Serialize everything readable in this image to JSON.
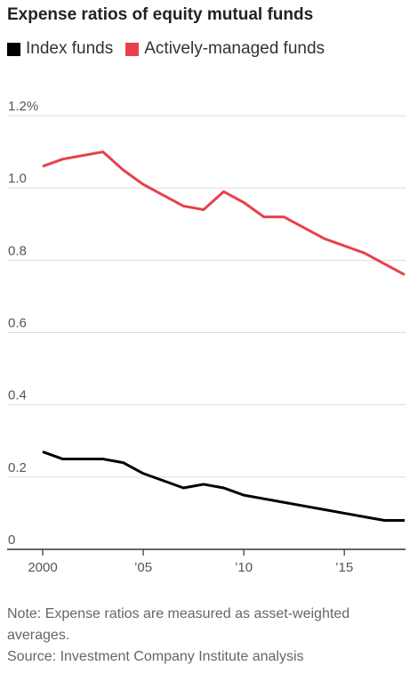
{
  "title": "Expense ratios of equity mutual funds",
  "colors": {
    "index": "#000000",
    "active": "#e8404b",
    "grid": "#dddddd",
    "axis": "#333333"
  },
  "chart_data": {
    "type": "line",
    "x": [
      2000,
      2001,
      2002,
      2003,
      2004,
      2005,
      2006,
      2007,
      2008,
      2009,
      2010,
      2011,
      2012,
      2013,
      2014,
      2015,
      2016,
      2017,
      2018
    ],
    "series": [
      {
        "name": "Index funds",
        "color": "#000000",
        "values": [
          0.27,
          0.25,
          0.25,
          0.25,
          0.24,
          0.21,
          0.19,
          0.17,
          0.18,
          0.17,
          0.15,
          0.14,
          0.13,
          0.12,
          0.11,
          0.1,
          0.09,
          0.08,
          0.08
        ]
      },
      {
        "name": "Actively-managed funds",
        "color": "#e8404b",
        "values": [
          1.06,
          1.08,
          1.09,
          1.1,
          1.05,
          1.01,
          0.98,
          0.95,
          0.94,
          0.99,
          0.96,
          0.92,
          0.92,
          0.89,
          0.86,
          0.84,
          0.82,
          0.79,
          0.76
        ]
      }
    ],
    "y_ticks": [
      {
        "value": 1.2,
        "label": "1.2%"
      },
      {
        "value": 1.0,
        "label": "1.0"
      },
      {
        "value": 0.8,
        "label": "0.8"
      },
      {
        "value": 0.6,
        "label": "0.6"
      },
      {
        "value": 0.4,
        "label": "0.4"
      },
      {
        "value": 0.2,
        "label": "0.2"
      },
      {
        "value": 0,
        "label": "0"
      }
    ],
    "x_ticks": [
      {
        "value": 2000,
        "label": "2000"
      },
      {
        "value": 2005,
        "label": "’05"
      },
      {
        "value": 2010,
        "label": "’10"
      },
      {
        "value": 2015,
        "label": "’15"
      }
    ],
    "ylim": [
      0,
      1.2
    ],
    "xlim": [
      2000,
      2018
    ],
    "grid": true,
    "legend_position": "top-left"
  },
  "notes": {
    "note": "Note: Expense ratios are measured as asset-weighted averages.",
    "source": "Source: Investment Company Institute analysis"
  }
}
